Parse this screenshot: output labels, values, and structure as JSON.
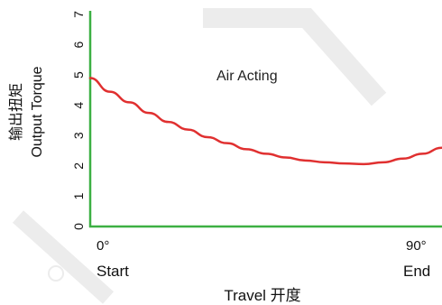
{
  "chart_data": {
    "type": "line",
    "title": "",
    "ylabel_cn": "输出扭矩",
    "ylabel_en": "Output Torque",
    "xlabel": "Travel 开度",
    "x_ticks": [
      {
        "top": "0°",
        "bottom": "Start"
      },
      {
        "top": "90°",
        "bottom": "End"
      }
    ],
    "y_ticks": [
      "0",
      "1",
      "2",
      "3",
      "4",
      "5",
      "6",
      "7"
    ],
    "ylim": [
      0,
      7
    ],
    "xlim": [
      0,
      90
    ],
    "annotation": "Air Acting",
    "series": [
      {
        "color": "#e03030",
        "x": [
          0,
          5,
          10,
          15,
          20,
          25,
          30,
          35,
          40,
          45,
          50,
          55,
          60,
          65,
          70,
          75,
          80,
          85,
          90
        ],
        "values": [
          4.9,
          4.45,
          4.1,
          3.75,
          3.45,
          3.2,
          2.95,
          2.75,
          2.55,
          2.4,
          2.28,
          2.18,
          2.12,
          2.08,
          2.06,
          2.12,
          2.24,
          2.4,
          2.6
        ]
      }
    ],
    "axis_color": "#3cb043"
  }
}
